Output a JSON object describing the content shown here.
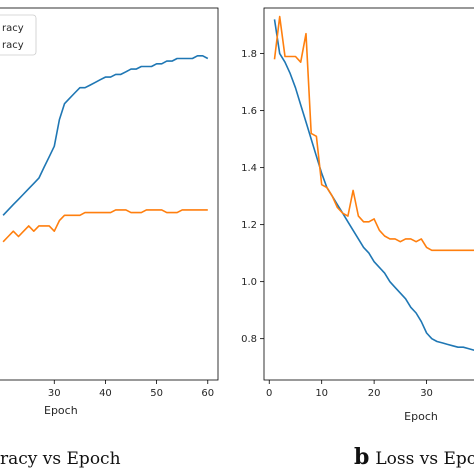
{
  "chart_data": [
    {
      "type": "line",
      "panel_letter": "",
      "caption": "racy vs Epoch",
      "xlabel": "Epoch",
      "ylabel": "",
      "xlim": [
        19,
        62
      ],
      "ylim": [
        0.3,
        1.0
      ],
      "xticks": [
        30,
        40,
        50,
        60
      ],
      "yticks": [],
      "grid": false,
      "legend": {
        "location": "top-left",
        "entries": [
          "racy",
          "racy"
        ]
      },
      "series": [
        {
          "name": "racy",
          "color": "#1f77b4",
          "x": [
            20,
            21,
            22,
            23,
            24,
            25,
            26,
            27,
            28,
            29,
            30,
            31,
            32,
            33,
            34,
            35,
            36,
            37,
            38,
            39,
            40,
            41,
            42,
            43,
            44,
            45,
            46,
            47,
            48,
            49,
            50,
            51,
            52,
            53,
            54,
            55,
            56,
            57,
            58,
            59,
            60
          ],
          "y": [
            0.61,
            0.62,
            0.63,
            0.64,
            0.65,
            0.66,
            0.67,
            0.68,
            0.7,
            0.72,
            0.74,
            0.79,
            0.82,
            0.83,
            0.84,
            0.85,
            0.85,
            0.855,
            0.86,
            0.865,
            0.87,
            0.87,
            0.875,
            0.875,
            0.88,
            0.885,
            0.885,
            0.89,
            0.89,
            0.89,
            0.895,
            0.895,
            0.9,
            0.9,
            0.905,
            0.905,
            0.905,
            0.905,
            0.91,
            0.91,
            0.905
          ]
        },
        {
          "name": "racy",
          "color": "#ff7f0e",
          "x": [
            20,
            21,
            22,
            23,
            24,
            25,
            26,
            27,
            28,
            29,
            30,
            31,
            32,
            33,
            34,
            35,
            36,
            37,
            38,
            39,
            40,
            41,
            42,
            43,
            44,
            45,
            46,
            47,
            48,
            49,
            50,
            51,
            52,
            53,
            54,
            55,
            56,
            57,
            58,
            59,
            60
          ],
          "y": [
            0.56,
            0.57,
            0.58,
            0.57,
            0.58,
            0.59,
            0.58,
            0.59,
            0.59,
            0.59,
            0.58,
            0.6,
            0.61,
            0.61,
            0.61,
            0.61,
            0.615,
            0.615,
            0.615,
            0.615,
            0.615,
            0.615,
            0.62,
            0.62,
            0.62,
            0.615,
            0.615,
            0.615,
            0.62,
            0.62,
            0.62,
            0.62,
            0.615,
            0.615,
            0.615,
            0.62,
            0.62,
            0.62,
            0.62,
            0.62,
            0.62
          ]
        }
      ]
    },
    {
      "type": "line",
      "panel_letter": "b",
      "caption": "Loss vs Epo",
      "xlabel": "Epoch",
      "ylabel": "",
      "xlim": [
        -1,
        40
      ],
      "ylim": [
        0.655,
        1.96
      ],
      "xticks": [
        0,
        10,
        20,
        30
      ],
      "yticks": [
        0.8,
        1.0,
        1.2,
        1.4,
        1.6,
        1.8
      ],
      "grid": false,
      "legend": null,
      "series": [
        {
          "name": "",
          "color": "#1f77b4",
          "x": [
            1,
            2,
            3,
            4,
            5,
            6,
            7,
            8,
            9,
            10,
            11,
            12,
            13,
            14,
            15,
            16,
            17,
            18,
            19,
            20,
            21,
            22,
            23,
            24,
            25,
            26,
            27,
            28,
            29,
            30,
            31,
            32,
            33,
            34,
            35,
            36,
            37,
            38,
            39,
            40
          ],
          "y": [
            1.92,
            1.8,
            1.77,
            1.73,
            1.68,
            1.62,
            1.56,
            1.5,
            1.44,
            1.38,
            1.33,
            1.3,
            1.27,
            1.24,
            1.21,
            1.18,
            1.15,
            1.12,
            1.1,
            1.07,
            1.05,
            1.03,
            1.0,
            0.98,
            0.96,
            0.94,
            0.91,
            0.89,
            0.86,
            0.82,
            0.8,
            0.79,
            0.785,
            0.78,
            0.775,
            0.77,
            0.77,
            0.765,
            0.76,
            0.76
          ]
        },
        {
          "name": "",
          "color": "#ff7f0e",
          "x": [
            1,
            2,
            3,
            4,
            5,
            6,
            7,
            8,
            9,
            10,
            11,
            12,
            13,
            14,
            15,
            16,
            17,
            18,
            19,
            20,
            21,
            22,
            23,
            24,
            25,
            26,
            27,
            28,
            29,
            30,
            31,
            32,
            33,
            34,
            35,
            36,
            37,
            38,
            39,
            40
          ],
          "y": [
            1.78,
            1.93,
            1.79,
            1.79,
            1.79,
            1.77,
            1.87,
            1.52,
            1.51,
            1.34,
            1.33,
            1.3,
            1.26,
            1.24,
            1.23,
            1.32,
            1.23,
            1.21,
            1.21,
            1.22,
            1.18,
            1.16,
            1.15,
            1.15,
            1.14,
            1.15,
            1.15,
            1.14,
            1.15,
            1.12,
            1.11,
            1.11,
            1.11,
            1.11,
            1.11,
            1.11,
            1.11,
            1.11,
            1.11,
            1.11
          ]
        }
      ]
    }
  ]
}
